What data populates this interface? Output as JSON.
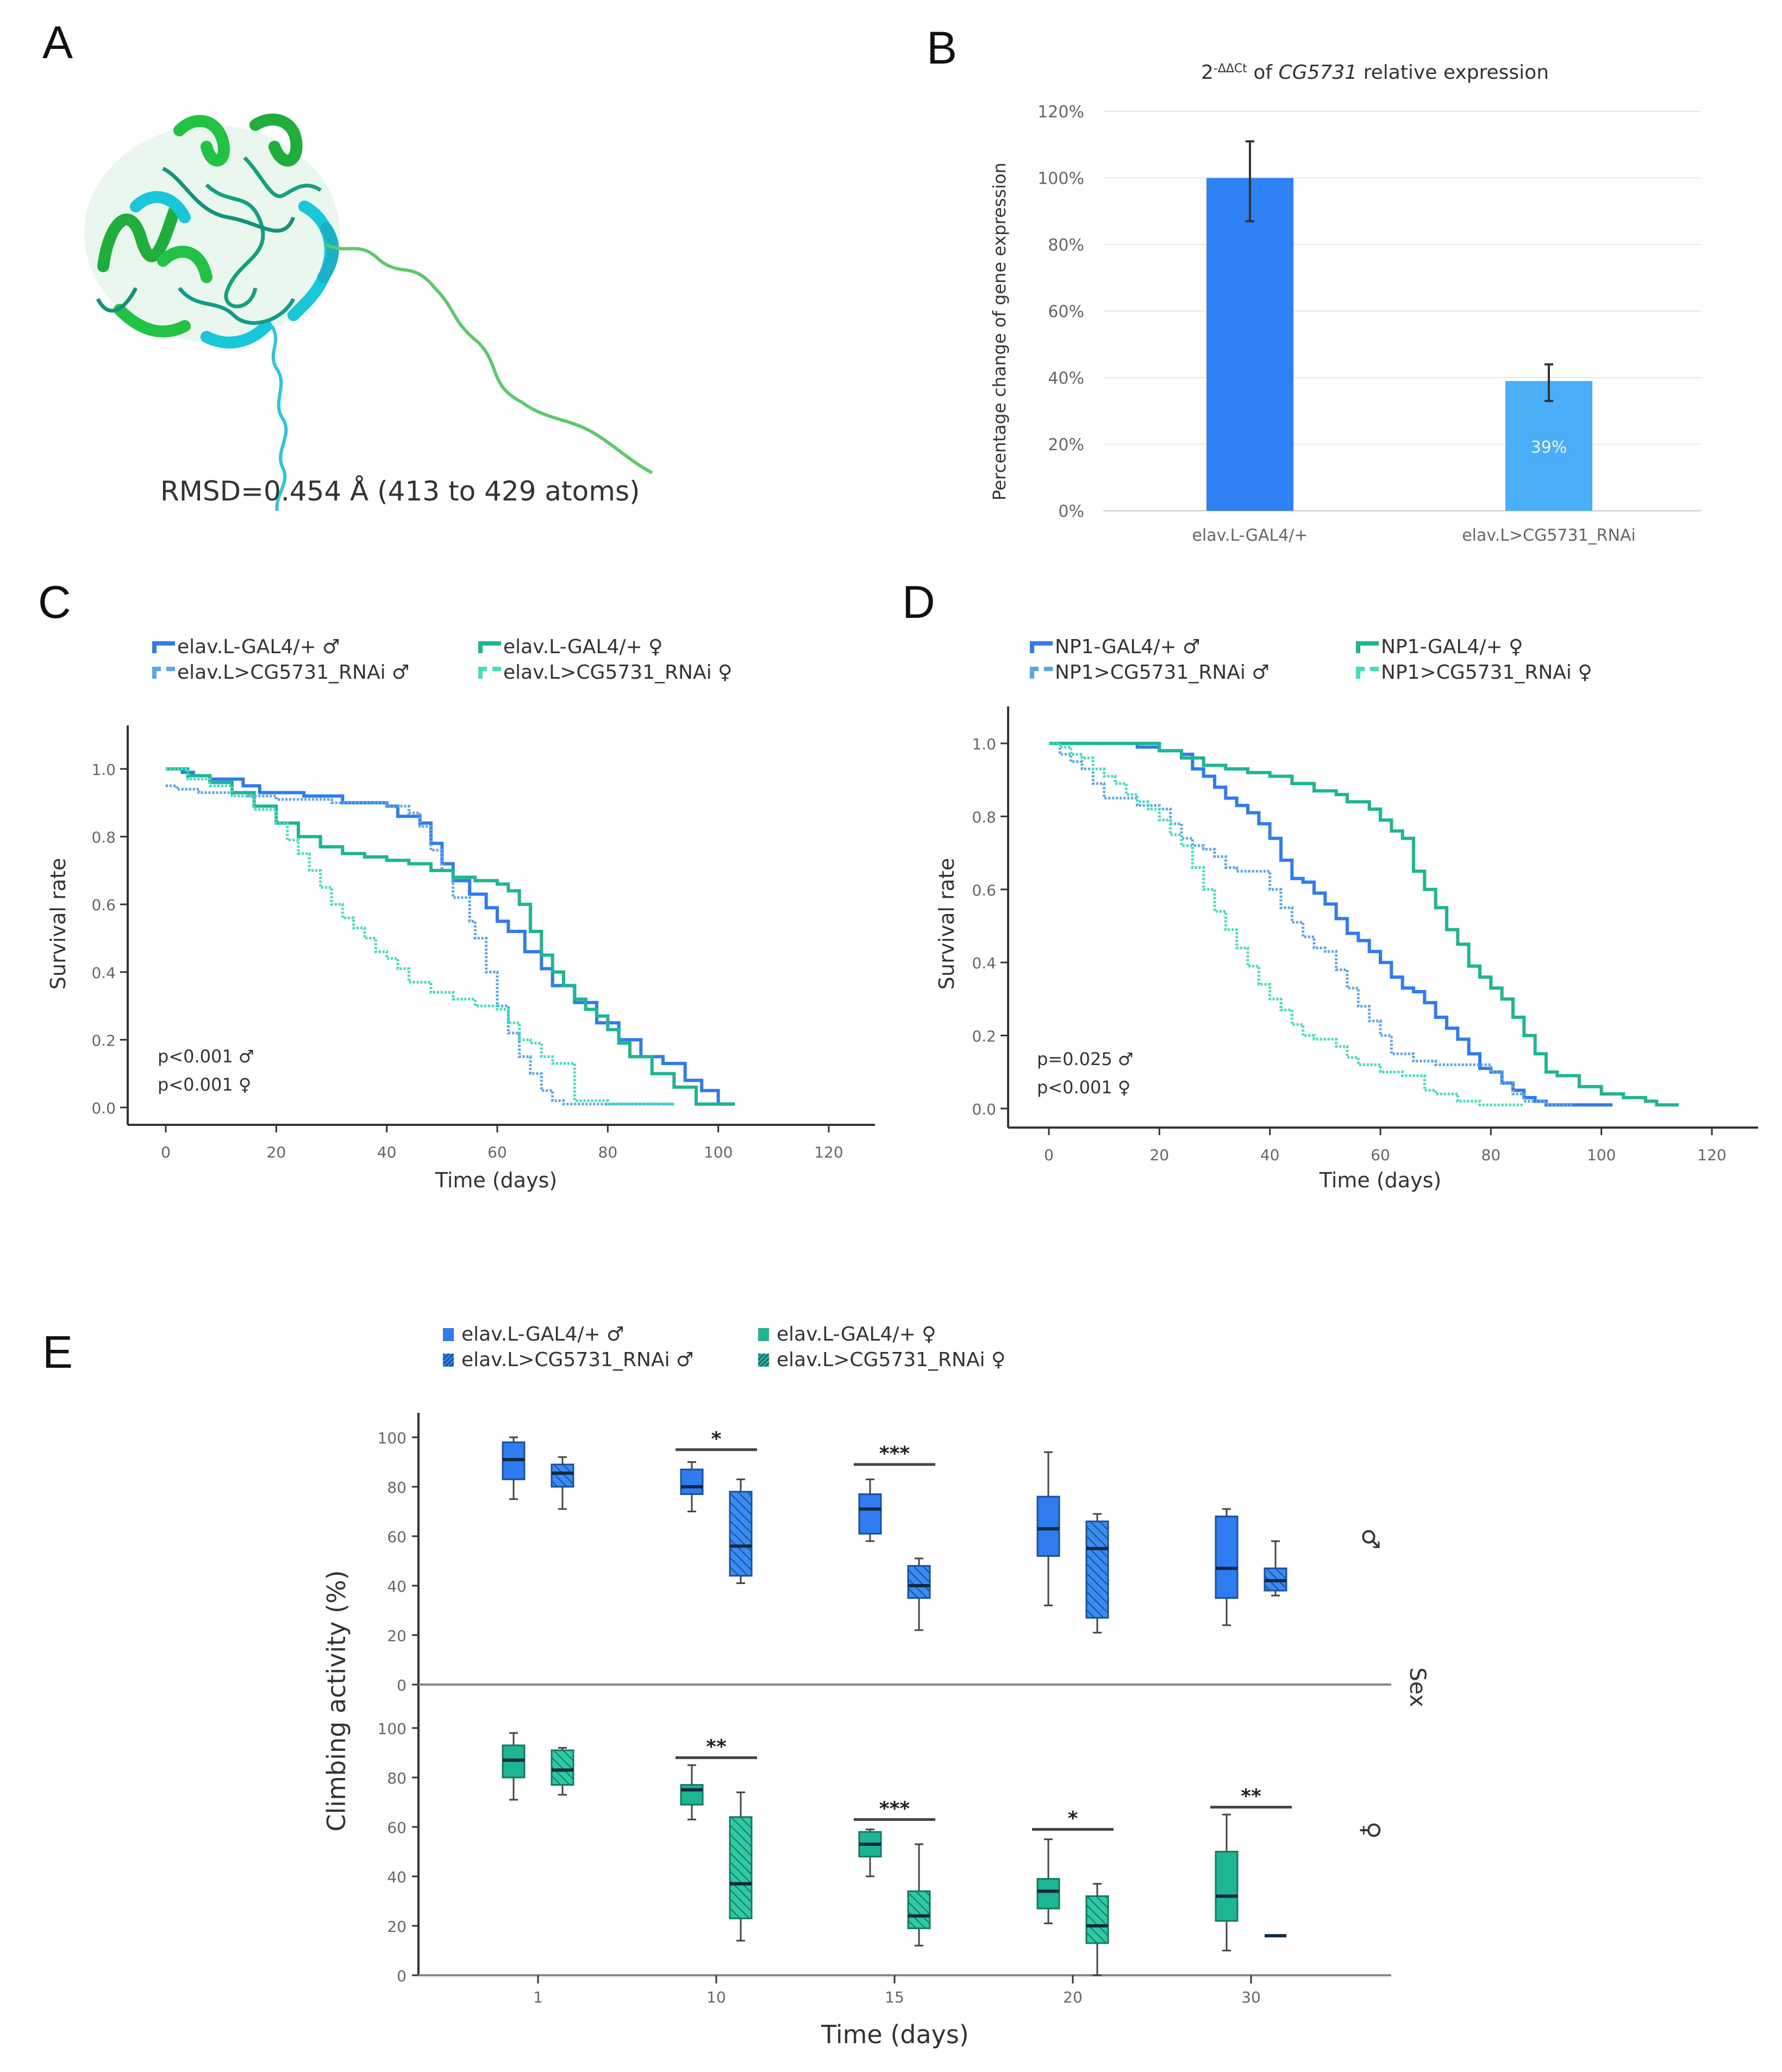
{
  "panels": {
    "A": {
      "letter": "A",
      "caption": "RMSD=0.454 Å (413 to 429 atoms)",
      "structure_colors": {
        "model_1": "#22c244",
        "model_2": "#18c8d8",
        "tail_1": "#5cc96a",
        "tail_2": "#2cc6dc"
      }
    },
    "B": {
      "letter": "B"
    },
    "C": {
      "letter": "C"
    },
    "D": {
      "letter": "D"
    },
    "E": {
      "letter": "E"
    }
  },
  "colors": {
    "male_ctrl": "#2f7bf0",
    "male_rnai": "#5aa6ee",
    "female_ctrl": "#1db592",
    "female_rnai": "#3fe0be",
    "bar_ctrl": "#2f82f5",
    "bar_rnai": "#4aaef8",
    "axis": "#333333",
    "grid": "#e8e8e8",
    "tick_text": "#666666"
  },
  "chart_data": [
    {
      "id": "B",
      "type": "bar",
      "title_prefix": "2",
      "title_sup": "-ΔΔCt",
      "title_mid": " of ",
      "title_gene": "CG5731",
      "title_suffix": " relative expression",
      "ylabel": "Percentage change of gene expression",
      "xlabel": "",
      "categories": [
        "elav.L-GAL4/+",
        "elav.L>CG5731_RNAi"
      ],
      "values": [
        100,
        39
      ],
      "error_low": [
        87,
        33
      ],
      "error_high": [
        111,
        44
      ],
      "data_labels": [
        "",
        "39%"
      ],
      "ylim": [
        0,
        120
      ],
      "yticks": [
        "0%",
        "20%",
        "40%",
        "60%",
        "80%",
        "100%",
        "120%"
      ],
      "grid": true
    },
    {
      "id": "C",
      "type": "line",
      "subtype": "kaplan-meier",
      "xlabel": "Time (days)",
      "ylabel": "Survival rate",
      "xlim": [
        0,
        120
      ],
      "ylim": [
        0,
        1
      ],
      "xticks": [
        "0",
        "20",
        "40",
        "60",
        "80",
        "100",
        "120"
      ],
      "yticks": [
        "0.0",
        "0.2",
        "0.4",
        "0.6",
        "0.8",
        "1.0"
      ],
      "legend": "top",
      "annotations": [
        "p<0.001 ♂",
        "p<0.001 ♀"
      ],
      "series": [
        {
          "name": "elav.L-GAL4/+ ♂",
          "style": "solid",
          "color_key": "male_ctrl",
          "x": [
            0,
            3,
            5,
            8,
            12,
            14,
            17,
            20,
            25,
            28,
            32,
            35,
            40,
            42,
            46,
            48,
            50,
            52,
            55,
            58,
            60,
            62,
            65,
            68,
            70,
            74,
            78,
            82,
            86,
            90,
            94,
            97,
            100,
            103
          ],
          "y": [
            1.0,
            0.99,
            0.98,
            0.97,
            0.97,
            0.95,
            0.93,
            0.93,
            0.92,
            0.92,
            0.9,
            0.9,
            0.89,
            0.86,
            0.84,
            0.78,
            0.72,
            0.67,
            0.63,
            0.59,
            0.55,
            0.52,
            0.46,
            0.41,
            0.36,
            0.31,
            0.25,
            0.2,
            0.15,
            0.13,
            0.08,
            0.05,
            0.01,
            0.01
          ]
        },
        {
          "name": "elav.L>CG5731_RNAi ♂",
          "style": "dotted",
          "color_key": "male_rnai",
          "x": [
            0,
            2,
            6,
            10,
            15,
            20,
            25,
            30,
            35,
            40,
            44,
            46,
            48,
            50,
            52,
            55,
            56,
            58,
            60,
            62,
            64,
            66,
            68,
            70,
            72,
            76,
            80,
            85,
            92
          ],
          "y": [
            0.95,
            0.94,
            0.93,
            0.93,
            0.92,
            0.91,
            0.91,
            0.9,
            0.9,
            0.89,
            0.87,
            0.83,
            0.76,
            0.7,
            0.62,
            0.55,
            0.5,
            0.4,
            0.3,
            0.22,
            0.15,
            0.1,
            0.05,
            0.02,
            0.01,
            0.01,
            0.01,
            0.01,
            0.01
          ]
        },
        {
          "name": "elav.L-GAL4/+ ♀",
          "style": "solid",
          "color_key": "female_ctrl",
          "x": [
            0,
            4,
            8,
            12,
            16,
            20,
            24,
            28,
            32,
            36,
            40,
            44,
            48,
            52,
            56,
            60,
            62,
            64,
            66,
            68,
            70,
            72,
            74,
            76,
            78,
            80,
            82,
            84,
            88,
            92,
            96,
            100,
            103
          ],
          "y": [
            1.0,
            0.98,
            0.96,
            0.93,
            0.89,
            0.84,
            0.8,
            0.77,
            0.75,
            0.74,
            0.73,
            0.72,
            0.7,
            0.68,
            0.67,
            0.66,
            0.64,
            0.6,
            0.52,
            0.45,
            0.4,
            0.36,
            0.32,
            0.29,
            0.27,
            0.23,
            0.19,
            0.15,
            0.1,
            0.06,
            0.01,
            0.01,
            0.01
          ]
        },
        {
          "name": "elav.L>CG5731_RNAi ♀",
          "style": "dotted",
          "color_key": "female_rnai",
          "x": [
            0,
            4,
            8,
            12,
            16,
            20,
            22,
            24,
            26,
            28,
            30,
            32,
            34,
            36,
            38,
            40,
            42,
            44,
            48,
            52,
            56,
            60,
            62,
            64,
            66,
            68,
            70,
            72,
            74,
            76,
            80,
            85,
            90,
            92
          ],
          "y": [
            1.0,
            0.97,
            0.95,
            0.92,
            0.88,
            0.84,
            0.79,
            0.75,
            0.7,
            0.65,
            0.6,
            0.56,
            0.53,
            0.5,
            0.46,
            0.44,
            0.41,
            0.37,
            0.34,
            0.32,
            0.3,
            0.29,
            0.25,
            0.2,
            0.19,
            0.15,
            0.13,
            0.13,
            0.02,
            0.02,
            0.01,
            0.01,
            0.01,
            0.01
          ]
        }
      ]
    },
    {
      "id": "D",
      "type": "line",
      "subtype": "kaplan-meier",
      "xlabel": "Time (days)",
      "ylabel": "Survival rate",
      "xlim": [
        0,
        120
      ],
      "ylim": [
        0,
        1
      ],
      "xticks": [
        "0",
        "20",
        "40",
        "60",
        "80",
        "100",
        "120"
      ],
      "yticks": [
        "0.0",
        "0.2",
        "0.4",
        "0.6",
        "0.8",
        "1.0"
      ],
      "legend": "top",
      "annotations": [
        "p=0.025 ♂",
        "p<0.001 ♀"
      ],
      "series": [
        {
          "name": "NP1-GAL4/+ ♂",
          "style": "solid",
          "color_key": "male_ctrl",
          "x": [
            0,
            10,
            16,
            20,
            24,
            26,
            28,
            30,
            32,
            34,
            36,
            38,
            40,
            42,
            44,
            46,
            48,
            50,
            52,
            54,
            56,
            58,
            60,
            62,
            64,
            66,
            68,
            70,
            72,
            74,
            76,
            78,
            80,
            82,
            84,
            86,
            88,
            90,
            95,
            102
          ],
          "y": [
            1.0,
            1.0,
            0.99,
            0.98,
            0.97,
            0.93,
            0.91,
            0.88,
            0.85,
            0.83,
            0.81,
            0.78,
            0.74,
            0.68,
            0.63,
            0.62,
            0.59,
            0.56,
            0.52,
            0.48,
            0.46,
            0.43,
            0.4,
            0.36,
            0.33,
            0.32,
            0.29,
            0.25,
            0.22,
            0.19,
            0.15,
            0.11,
            0.1,
            0.07,
            0.05,
            0.03,
            0.02,
            0.01,
            0.01,
            0.01
          ]
        },
        {
          "name": "NP1>CG5731_RNAi ♂",
          "style": "dotted",
          "color_key": "male_rnai",
          "x": [
            0,
            2,
            4,
            6,
            8,
            10,
            12,
            16,
            20,
            22,
            24,
            26,
            28,
            30,
            32,
            34,
            38,
            40,
            42,
            44,
            46,
            48,
            50,
            52,
            54,
            56,
            58,
            60,
            62,
            66,
            70,
            74,
            78,
            80,
            82,
            84,
            86,
            88,
            90,
            95
          ],
          "y": [
            1.0,
            0.97,
            0.95,
            0.93,
            0.89,
            0.85,
            0.85,
            0.83,
            0.82,
            0.78,
            0.74,
            0.72,
            0.71,
            0.69,
            0.66,
            0.65,
            0.65,
            0.6,
            0.55,
            0.51,
            0.47,
            0.44,
            0.43,
            0.38,
            0.33,
            0.28,
            0.24,
            0.2,
            0.15,
            0.13,
            0.12,
            0.12,
            0.12,
            0.1,
            0.07,
            0.04,
            0.02,
            0.02,
            0.01,
            0.01
          ]
        },
        {
          "name": "NP1-GAL4/+ ♀",
          "style": "solid",
          "color_key": "female_ctrl",
          "x": [
            0,
            10,
            20,
            24,
            28,
            32,
            36,
            40,
            44,
            48,
            52,
            54,
            58,
            60,
            62,
            64,
            66,
            68,
            70,
            72,
            74,
            76,
            78,
            80,
            82,
            84,
            86,
            88,
            90,
            92,
            96,
            100,
            104,
            108,
            110,
            114
          ],
          "y": [
            1.0,
            1.0,
            0.98,
            0.96,
            0.94,
            0.93,
            0.92,
            0.91,
            0.89,
            0.87,
            0.86,
            0.84,
            0.82,
            0.79,
            0.76,
            0.74,
            0.65,
            0.6,
            0.55,
            0.49,
            0.45,
            0.39,
            0.36,
            0.33,
            0.3,
            0.25,
            0.2,
            0.15,
            0.1,
            0.09,
            0.06,
            0.04,
            0.03,
            0.02,
            0.01,
            0.01
          ]
        },
        {
          "name": "NP1>CG5731_RNAi ♀",
          "style": "dotted",
          "color_key": "female_rnai",
          "x": [
            0,
            2,
            4,
            6,
            8,
            10,
            12,
            14,
            16,
            18,
            20,
            22,
            24,
            26,
            28,
            30,
            32,
            34,
            36,
            38,
            40,
            42,
            44,
            46,
            48,
            50,
            52,
            54,
            56,
            60,
            64,
            68,
            70,
            74,
            78,
            82,
            86
          ],
          "y": [
            1.0,
            0.99,
            0.97,
            0.96,
            0.93,
            0.91,
            0.89,
            0.86,
            0.84,
            0.82,
            0.79,
            0.75,
            0.72,
            0.66,
            0.6,
            0.54,
            0.49,
            0.44,
            0.39,
            0.34,
            0.3,
            0.27,
            0.23,
            0.2,
            0.19,
            0.19,
            0.17,
            0.14,
            0.12,
            0.1,
            0.09,
            0.05,
            0.04,
            0.02,
            0.01,
            0.01,
            0.01
          ]
        }
      ]
    },
    {
      "id": "E",
      "type": "box",
      "xlabel": "Time (days)",
      "ylabel": "Climbing activity (%)",
      "facet_label": "Sex",
      "categories": [
        "1",
        "10",
        "15",
        "20",
        "30"
      ],
      "ylim": [
        0,
        100
      ],
      "yticks": [
        "0",
        "20",
        "40",
        "60",
        "80",
        "100"
      ],
      "legend": "top",
      "facets": [
        {
          "name": "male",
          "symbol": "♂",
          "series": [
            {
              "name": "elav.L-GAL4/+ ♂",
              "color_key": "male_ctrl",
              "hatched": false,
              "boxes": [
                {
                  "min": 75,
                  "q1": 83,
                  "median": 91,
                  "q3": 98,
                  "max": 100
                },
                {
                  "min": 70,
                  "q1": 77,
                  "median": 80,
                  "q3": 87,
                  "max": 90
                },
                {
                  "min": 58,
                  "q1": 61,
                  "median": 71,
                  "q3": 77,
                  "max": 83
                },
                {
                  "min": 32,
                  "q1": 52,
                  "median": 63,
                  "q3": 76,
                  "max": 94
                },
                {
                  "min": 24,
                  "q1": 35,
                  "median": 47,
                  "q3": 68,
                  "max": 71
                }
              ]
            },
            {
              "name": "elav.L>CG5731_RNAi ♂",
              "color_key": "male_rnai",
              "hatched": true,
              "boxes": [
                {
                  "min": 71,
                  "q1": 80,
                  "median": 85.5,
                  "q3": 89,
                  "max": 92
                },
                {
                  "min": 41,
                  "q1": 44,
                  "median": 56,
                  "q3": 78,
                  "max": 83
                },
                {
                  "min": 22,
                  "q1": 35,
                  "median": 40,
                  "q3": 48,
                  "max": 51
                },
                {
                  "min": 21,
                  "q1": 27,
                  "median": 55,
                  "q3": 66,
                  "max": 69
                },
                {
                  "min": 36,
                  "q1": 38,
                  "median": 42,
                  "q3": 47,
                  "max": 58
                }
              ]
            }
          ],
          "significance": [
            {
              "category": "10",
              "label": "*",
              "y": 95
            },
            {
              "category": "15",
              "label": "***",
              "y": 89
            }
          ]
        },
        {
          "name": "female",
          "symbol": "♀",
          "series": [
            {
              "name": "elav.L-GAL4/+ ♀",
              "color_key": "female_ctrl",
              "hatched": false,
              "boxes": [
                {
                  "min": 71,
                  "q1": 80,
                  "median": 87,
                  "q3": 93,
                  "max": 98
                },
                {
                  "min": 63,
                  "q1": 69,
                  "median": 75,
                  "q3": 77,
                  "max": 85
                },
                {
                  "min": 40,
                  "q1": 48,
                  "median": 53,
                  "q3": 58,
                  "max": 59
                },
                {
                  "min": 21,
                  "q1": 27,
                  "median": 34,
                  "q3": 39,
                  "max": 55
                },
                {
                  "min": 10,
                  "q1": 22,
                  "median": 32,
                  "q3": 50,
                  "max": 65
                }
              ]
            },
            {
              "name": "elav.L>CG5731_RNAi ♀",
              "color_key": "female_rnai",
              "hatched": true,
              "boxes": [
                {
                  "min": 73,
                  "q1": 77,
                  "median": 83,
                  "q3": 91,
                  "max": 92
                },
                {
                  "min": 14,
                  "q1": 23,
                  "median": 37,
                  "q3": 64,
                  "max": 74
                },
                {
                  "min": 12,
                  "q1": 19,
                  "median": 24,
                  "q3": 34,
                  "max": 53
                },
                {
                  "min": 0,
                  "q1": 13,
                  "median": 20,
                  "q3": 32,
                  "max": 37
                },
                {
                  "min": 16,
                  "q1": 16,
                  "median": 16,
                  "q3": 16,
                  "max": 16
                }
              ]
            }
          ],
          "significance": [
            {
              "category": "10",
              "label": "**",
              "y": 88
            },
            {
              "category": "15",
              "label": "***",
              "y": 63
            },
            {
              "category": "20",
              "label": "*",
              "y": 59
            },
            {
              "category": "30",
              "label": "**",
              "y": 68
            }
          ]
        }
      ]
    }
  ]
}
